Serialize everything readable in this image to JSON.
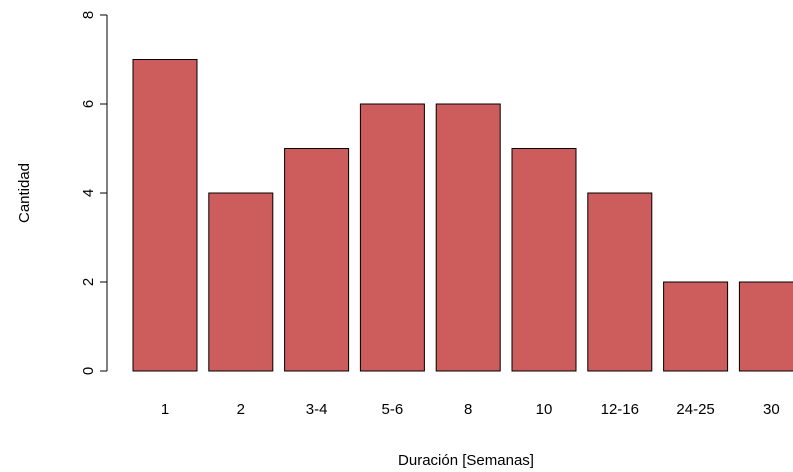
{
  "chart_data": {
    "type": "bar",
    "title": "",
    "xlabel": "Duración [Semanas]",
    "ylabel": "Cantidad",
    "categories": [
      "1",
      "2",
      "3-4",
      "5-6",
      "8",
      "10",
      "12-16",
      "24-25",
      "30"
    ],
    "values": [
      7,
      4,
      5,
      6,
      6,
      5,
      4,
      2,
      2
    ],
    "ylim": [
      0,
      8
    ],
    "yticks": [
      "0",
      "2",
      "4",
      "6",
      "8"
    ],
    "grid": false,
    "legend": "none",
    "bar_color": "#cd5c5c",
    "bar_edge_color": "#000000"
  }
}
